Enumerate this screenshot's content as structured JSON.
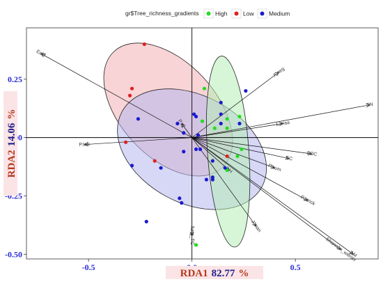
{
  "chart_data": {
    "type": "scatter",
    "legend": {
      "title": "gr$Tree_richness_gradients",
      "placement": "top",
      "entries": [
        {
          "name": "High",
          "color": "#22dd22"
        },
        {
          "name": "Low",
          "color": "#e02020"
        },
        {
          "name": "Medium",
          "color": "#1a1ad0"
        }
      ]
    },
    "xlabel": {
      "name": "RDA1",
      "value": "82.77",
      "unit": "%"
    },
    "ylabel": {
      "name": "RDA2",
      "value": "14.06",
      "unit": "%"
    },
    "xlim": [
      -0.8,
      0.9
    ],
    "ylim": [
      -0.52,
      0.47
    ],
    "x_ticks": [
      -0.5,
      0.0,
      0.5
    ],
    "x_tick_labels": [
      "-0.5",
      "0.0",
      "0.5"
    ],
    "y_ticks": [
      -0.5,
      -0.25,
      0.0,
      0.25
    ],
    "y_tick_labels": [
      "-0.50",
      "-0.25",
      "0.00",
      "0.25"
    ],
    "grid": false,
    "zero_lines": true,
    "ellipses": [
      {
        "group": "Low",
        "fill": "#f3b1b5",
        "center": [
          -0.115,
          0.12
        ],
        "rx": 0.23,
        "ry": 0.34,
        "angle": -43
      },
      {
        "group": "Medium",
        "fill": "#b7b7ee",
        "center": [
          0.0,
          -0.05
        ],
        "rx": 0.26,
        "ry": 0.34,
        "angle": -62
      },
      {
        "group": "High",
        "fill": "#b6edb6",
        "center": [
          0.175,
          -0.06
        ],
        "rx": 0.1,
        "ry": 0.41,
        "angle": -4
      }
    ],
    "series": [
      {
        "name": "High",
        "color": "#22dd22",
        "points": [
          [
            0.06,
            0.21
          ],
          [
            0.05,
            0.07
          ],
          [
            0.17,
            0.08
          ],
          [
            0.23,
            0.09
          ],
          [
            0.17,
            0.04
          ],
          [
            0.11,
            0.04
          ],
          [
            0.24,
            -0.05
          ],
          [
            0.22,
            -0.08
          ],
          [
            0.17,
            -0.14
          ],
          [
            0.02,
            -0.46
          ]
        ]
      },
      {
        "name": "Low",
        "color": "#e02020",
        "points": [
          [
            -0.23,
            0.4
          ],
          [
            -0.29,
            0.21
          ],
          [
            -0.3,
            0.18
          ],
          [
            -0.32,
            -0.02
          ],
          [
            -0.18,
            -0.1
          ],
          [
            0.17,
            -0.08
          ]
        ]
      },
      {
        "name": "Medium",
        "color": "#1a1ad0",
        "points": [
          [
            -0.26,
            0.08
          ],
          [
            0.26,
            0.2
          ],
          [
            0.14,
            0.15
          ],
          [
            0.14,
            0.1
          ],
          [
            0.01,
            0.1
          ],
          [
            0.02,
            0.09
          ],
          [
            0.14,
            0.06
          ],
          [
            0.23,
            0.06
          ],
          [
            -0.07,
            0.06
          ],
          [
            -0.04,
            0.02
          ],
          [
            0.03,
            0.01
          ],
          [
            0.02,
            -0.05
          ],
          [
            0.04,
            -0.05
          ],
          [
            -0.04,
            -0.06
          ],
          [
            -0.29,
            -0.12
          ],
          [
            0.1,
            -0.1
          ],
          [
            0.16,
            -0.13
          ],
          [
            0.1,
            -0.17
          ],
          [
            -0.15,
            -0.13
          ],
          [
            0.1,
            -0.18
          ],
          [
            0.07,
            -0.18
          ],
          [
            -0.06,
            -0.26
          ],
          [
            -0.05,
            -0.28
          ],
          [
            -0.22,
            -0.36
          ]
        ]
      }
    ],
    "vectors": [
      {
        "label": "EcM",
        "end": [
          -0.73,
          0.36
        ]
      },
      {
        "label": "A.neg",
        "end": [
          0.42,
          0.28
        ]
      },
      {
        "label": "TN",
        "end": [
          0.86,
          0.14
        ]
      },
      {
        "label": "L.maa",
        "end": [
          0.44,
          0.06
        ]
      },
      {
        "label": "P.sy",
        "end": [
          -0.05,
          0.06
        ]
      },
      {
        "label": "P.tab",
        "end": [
          -0.52,
          -0.03
        ]
      },
      {
        "label": "SOC",
        "end": [
          0.58,
          -0.07
        ]
      },
      {
        "label": "EC",
        "end": [
          0.47,
          -0.09
        ]
      },
      {
        "label": "P.aum",
        "end": [
          0.4,
          -0.13
        ]
      },
      {
        "label": "pH",
        "end": [
          0.18,
          -0.14
        ]
      },
      {
        "label": "P.atrick",
        "end": [
          0.56,
          -0.27
        ]
      },
      {
        "label": "J.man",
        "end": [
          0.31,
          -0.38
        ]
      },
      {
        "label": "Shannon_wiener",
        "end": [
          0.72,
          -0.48
        ]
      },
      {
        "label": "AM",
        "end": [
          0.78,
          -0.5
        ]
      },
      {
        "label": "fung_TC",
        "end": [
          0.0,
          -0.42
        ]
      }
    ]
  }
}
